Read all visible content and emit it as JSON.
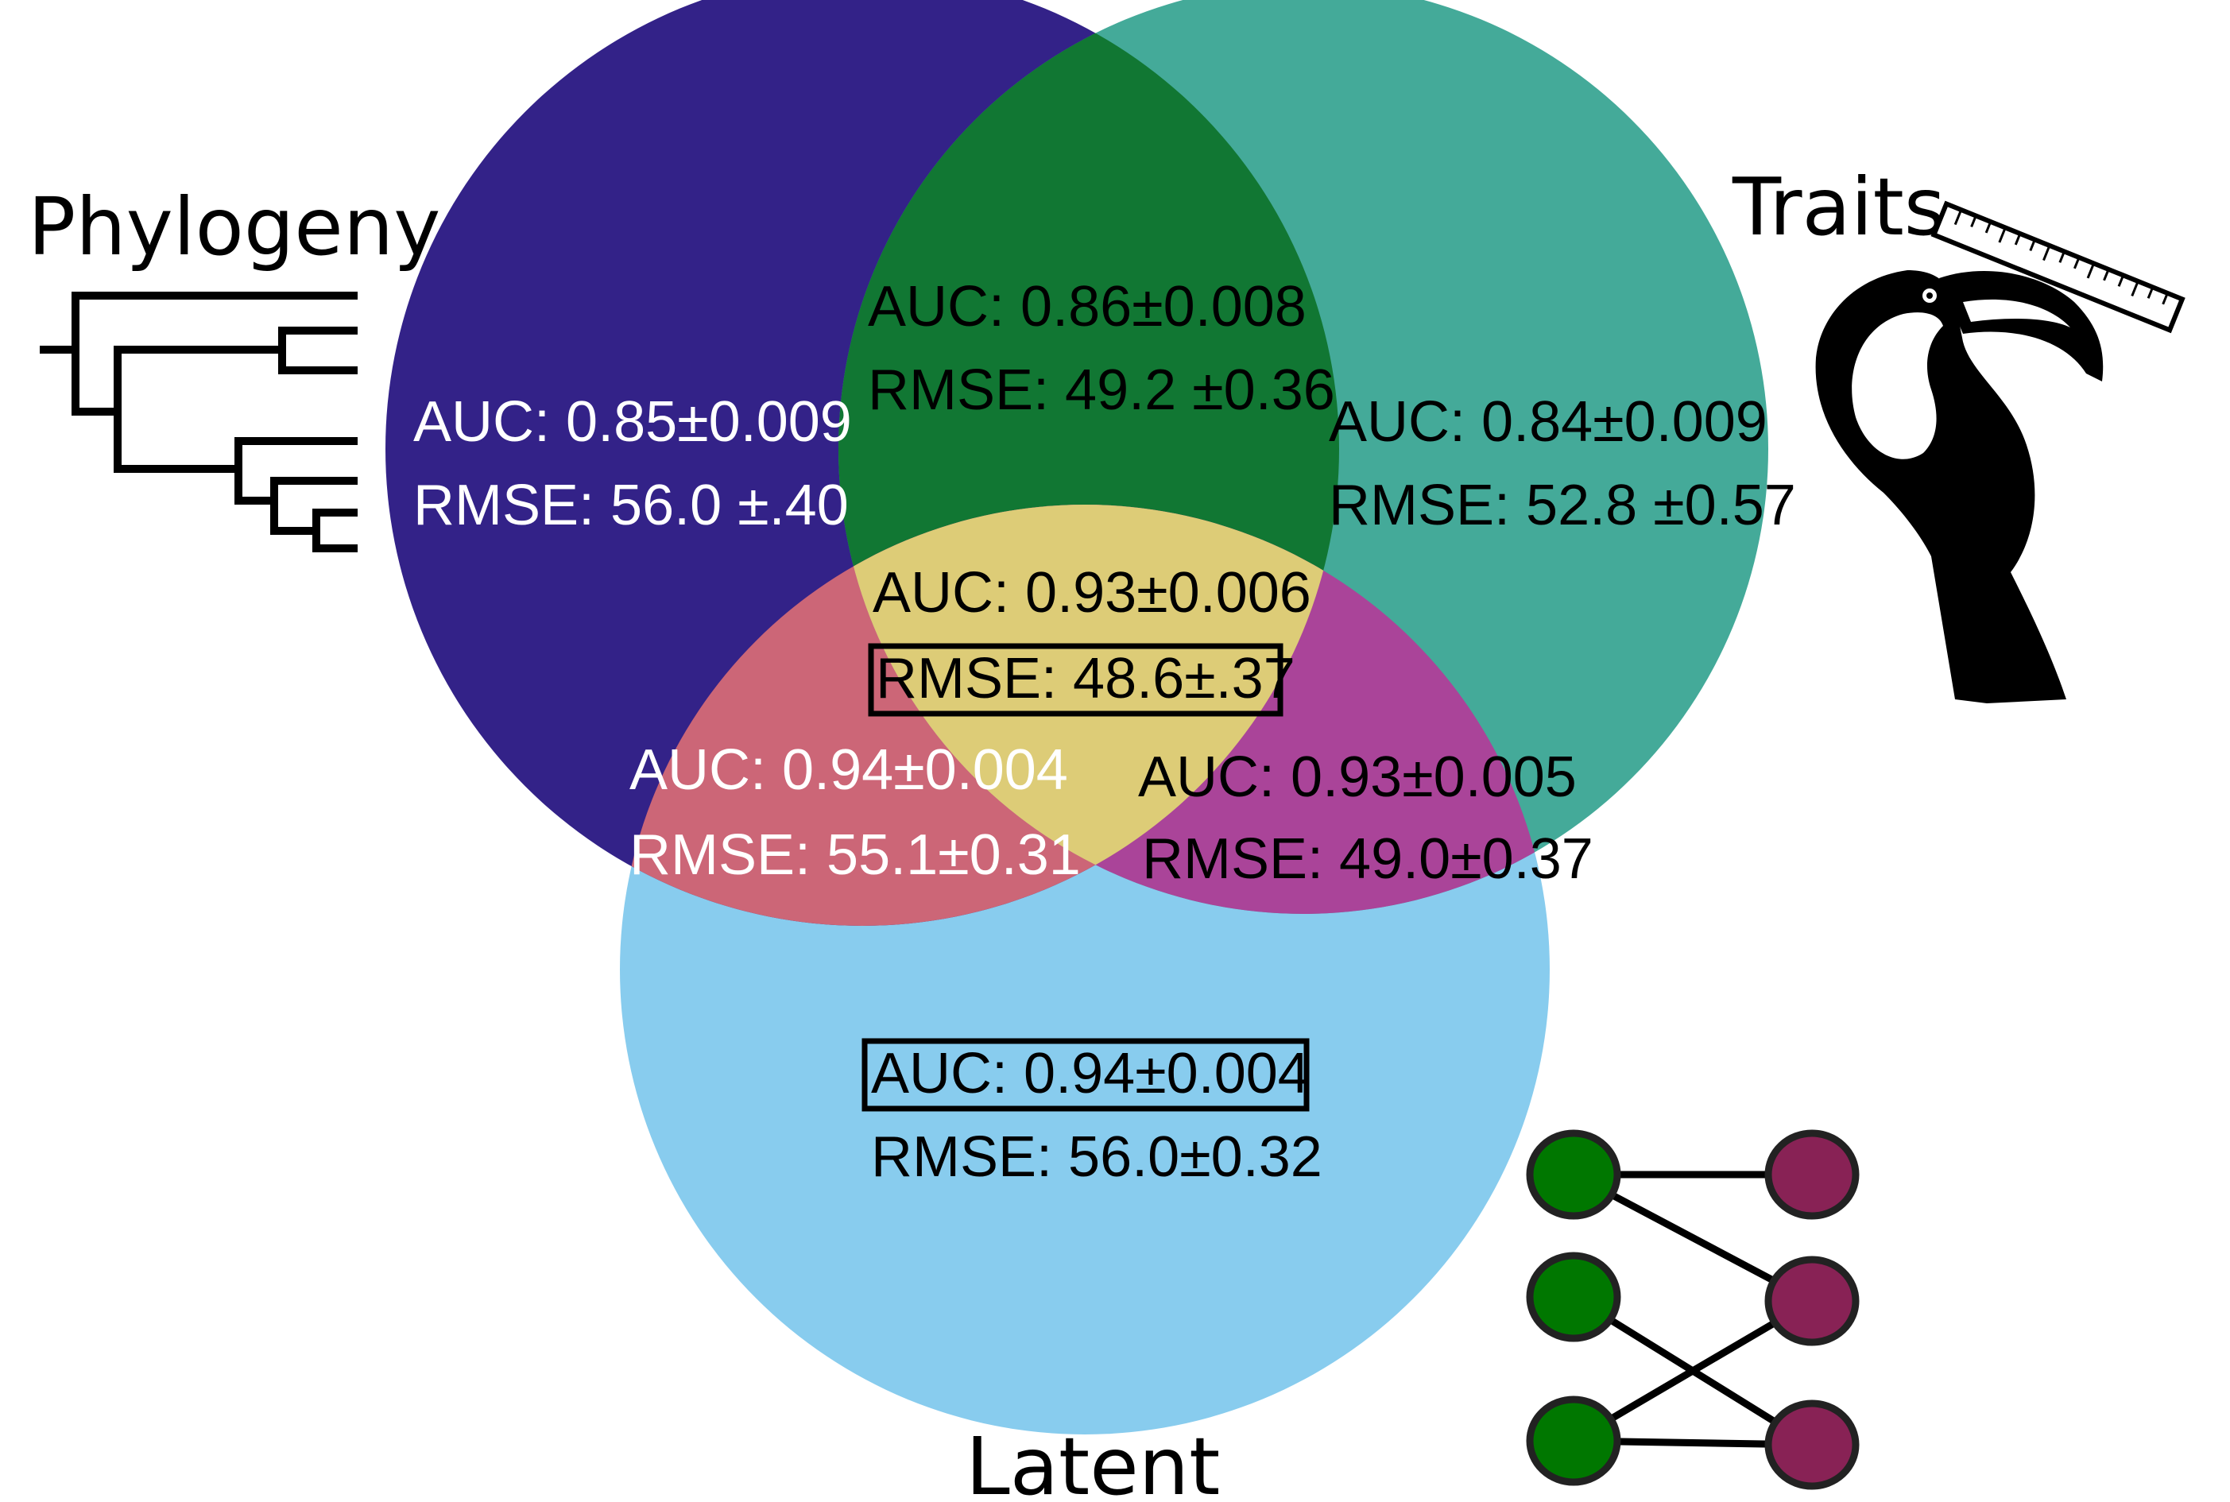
{
  "sets": {
    "phylogeny": {
      "title": "Phylogeny",
      "color": "#332288"
    },
    "traits": {
      "title": "Traits",
      "color": "#44aa99"
    },
    "latent": {
      "title": "Latent",
      "color": "#88ccee"
    }
  },
  "regions": {
    "phylogeny_only": {
      "auc": "AUC: 0.85±0.009",
      "rmse": "RMSE: 56.0 ±.40",
      "text_color": "#ffffff"
    },
    "phylogeny_traits": {
      "auc": "AUC: 0.86±0.008",
      "rmse": "RMSE: 49.2 ±0.36",
      "color": "#117733",
      "text_color": "#000000"
    },
    "traits_only": {
      "auc": "AUC: 0.84±0.009",
      "rmse": "RMSE: 52.8 ±0.57",
      "text_color": "#000000"
    },
    "all_three": {
      "auc": "AUC: 0.93±0.006",
      "rmse": "RMSE: 48.6±.37",
      "color": "#ddcc77",
      "text_color": "#000000",
      "boxed": "rmse"
    },
    "phylogeny_latent": {
      "auc": "AUC: 0.94±0.004",
      "rmse": "RMSE: 55.1±0.31",
      "color": "#cc6677",
      "text_color": "#ffffff"
    },
    "traits_latent": {
      "auc": "AUC: 0.93±0.005",
      "rmse": "RMSE: 49.0±0.37",
      "color": "#aa4499",
      "text_color": "#000000"
    },
    "latent_only": {
      "auc": "AUC: 0.94±0.004",
      "rmse": "RMSE: 56.0±0.32",
      "text_color": "#000000",
      "boxed": "auc"
    }
  },
  "icons": {
    "phylogeny": "phylogenetic-tree-icon",
    "traits": "toucan-with-ruler-icon",
    "latent": "bipartite-network-icon",
    "network_left_color": "#007700",
    "network_right_color": "#882255"
  }
}
